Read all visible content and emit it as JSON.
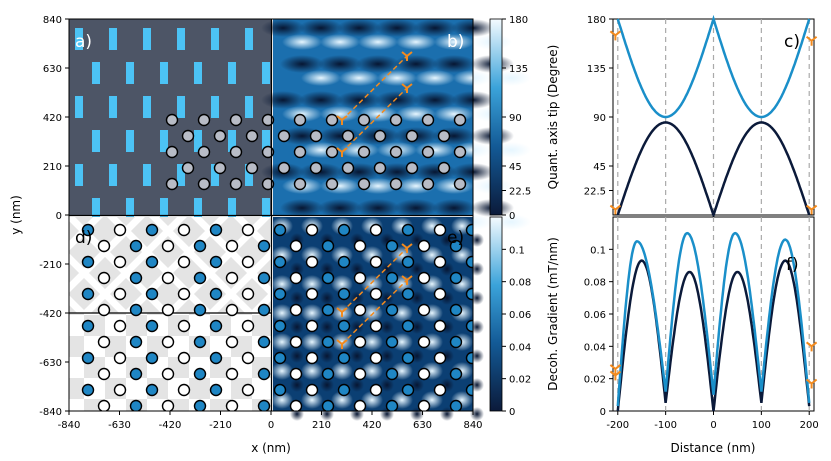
{
  "colors": {
    "dark_line": "#0b1a3a",
    "light_line": "#1a8fc9",
    "orange": "#f28a1e",
    "panel_a_bg": "#4d5566",
    "panel_a_bar": "#4cc3f5",
    "dot_blue": "#1f86c4",
    "dot_grey": "#b8bcc6"
  },
  "chart_data": [
    {
      "type": "heatmap",
      "panels": [
        "a)",
        "b)",
        "d)",
        "e)"
      ],
      "xlabel": "x (nm)",
      "ylabel": "y (nm)",
      "xlim": [
        -840,
        840
      ],
      "ylim": [
        -840,
        840
      ],
      "xticks": [
        "-840",
        "-630",
        "-420",
        "-210",
        "0",
        "210",
        "420",
        "630",
        "840"
      ],
      "yticks": [
        "840",
        "630",
        "420",
        "210",
        "0",
        "-210",
        "-420",
        "-630",
        "-840"
      ],
      "colorbar_top": {
        "range": [
          0,
          180
        ],
        "ticks": [
          "180",
          "135",
          "90",
          "45",
          "22.5",
          "0"
        ]
      },
      "colorbar_bottom": {
        "range": [
          0,
          0.12
        ],
        "ticks": [
          "0.1",
          "0.08",
          "0.06",
          "0.04",
          "0.02",
          "0"
        ]
      }
    },
    {
      "type": "line",
      "panel": "c)",
      "ylabel": "Quant. axis tip (Degree)",
      "xlim": [
        -210,
        210
      ],
      "ylim": [
        0,
        180
      ],
      "yticks": [
        "180",
        "135",
        "90",
        "45",
        "22.5"
      ],
      "vlines": [
        -200,
        -100,
        0,
        100,
        200
      ],
      "series": [
        {
          "x": [
            -200,
            -150,
            -100,
            -50,
            0,
            50,
            100,
            150,
            200
          ],
          "y": [
            0,
            60,
            85,
            60,
            0,
            60,
            85,
            60,
            0
          ]
        },
        {
          "x": [
            -200,
            -150,
            -100,
            -50,
            0,
            50,
            100,
            150,
            200
          ],
          "y": [
            180,
            115,
            90,
            115,
            180,
            115,
            90,
            115,
            180
          ]
        }
      ]
    },
    {
      "type": "line",
      "panel": "f)",
      "xlabel": "Distance (nm)",
      "ylabel": "Decoh. Gradient (mT/nm)",
      "xlim": [
        -210,
        210
      ],
      "ylim": [
        0,
        0.12
      ],
      "xticks": [
        "-200",
        "-100",
        "0",
        "100",
        "200"
      ],
      "yticks": [
        "0.1",
        "0.08",
        "0.06",
        "0.04",
        "0.02",
        "0"
      ],
      "vlines": [
        -200,
        -100,
        0,
        100,
        200
      ],
      "series": [
        {
          "peaks": [
            [
              -150,
              0.093
            ],
            [
              -50,
              0.086
            ],
            [
              50,
              0.086
            ],
            [
              150,
              0.093
            ]
          ],
          "minima": [
            [
              -200,
              0.0
            ],
            [
              -100,
              0.005
            ],
            [
              0,
              0.0
            ],
            [
              100,
              0.005
            ],
            [
              200,
              0.003
            ]
          ]
        },
        {
          "peaks": [
            [
              -160,
              0.105
            ],
            [
              -55,
              0.11
            ],
            [
              45,
              0.11
            ],
            [
              150,
              0.106
            ]
          ],
          "minima": [
            [
              -200,
              0.003
            ],
            [
              -100,
              0.012
            ],
            [
              0,
              0.01
            ],
            [
              100,
              0.012
            ],
            [
              200,
              0.005
            ]
          ]
        }
      ]
    }
  ]
}
